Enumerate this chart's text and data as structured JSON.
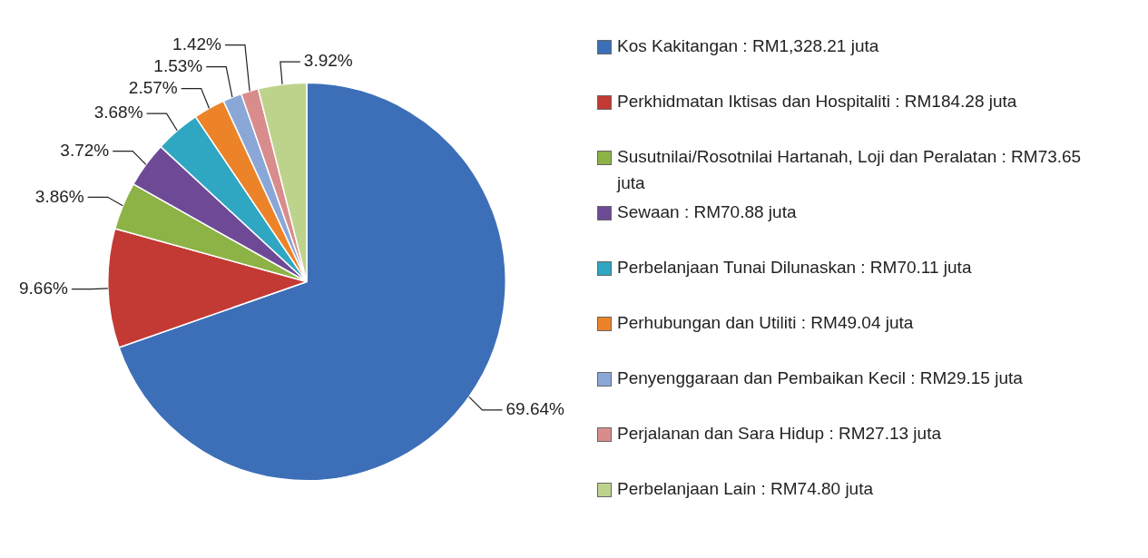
{
  "chart_data": {
    "type": "pie",
    "categories": [
      "Kos Kakitangan : RM1,328.21 juta",
      "Perkhidmatan Iktisas dan Hospitaliti : RM184.28 juta",
      "Susutnilai/Rosotnilai Hartanah, Loji dan Peralatan : RM73.65 juta",
      "Sewaan : RM70.88 juta",
      "Perbelanjaan Tunai Dilunaskan : RM70.11 juta",
      "Perhubungan dan Utiliti : RM49.04 juta",
      "Penyenggaraan dan Pembaikan Kecil : RM29.15 juta",
      "Perjalanan dan Sara Hidup : RM27.13 juta",
      "Perbelanjaan Lain : RM74.80 juta"
    ],
    "values": [
      69.64,
      9.66,
      3.86,
      3.72,
      3.68,
      2.57,
      1.53,
      1.42,
      3.92
    ],
    "value_labels": [
      "69.64%",
      "9.66%",
      "3.86%",
      "3.72%",
      "3.68%",
      "2.57%",
      "1.53%",
      "1.42%",
      "3.92%"
    ],
    "colors": [
      "#3c6fb8",
      "#c33a34",
      "#8db246",
      "#6e4a96",
      "#2fa6c2",
      "#ec8328",
      "#8ba7d8",
      "#d98c8c",
      "#bdd38c"
    ],
    "legend": "right"
  }
}
